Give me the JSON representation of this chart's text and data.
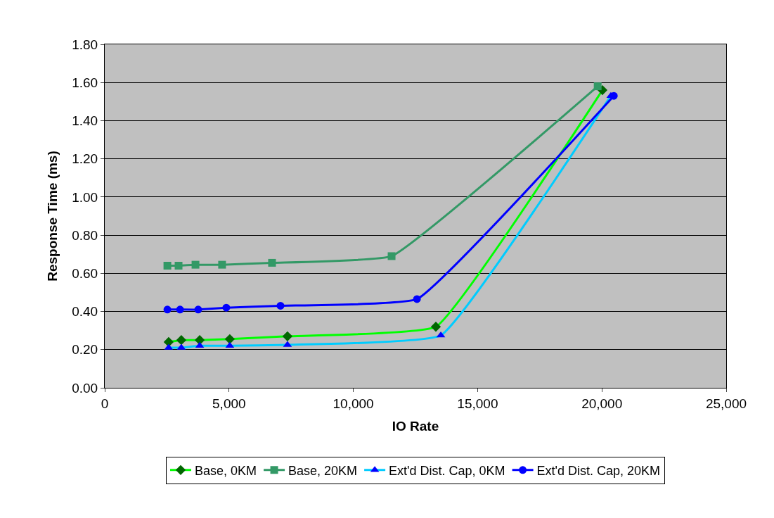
{
  "chart_data": {
    "type": "line",
    "xlabel": "IO Rate",
    "ylabel": "Response Time (ms)",
    "xlim": [
      0,
      25000
    ],
    "xticks": [
      {
        "value": 0,
        "label": "0"
      },
      {
        "value": 5000,
        "label": "5,000"
      },
      {
        "value": 10000,
        "label": "10,000"
      },
      {
        "value": 15000,
        "label": "15,000"
      },
      {
        "value": 20000,
        "label": "20,000"
      },
      {
        "value": 25000,
        "label": "25,000"
      }
    ],
    "ylim": [
      0,
      1.8
    ],
    "yticks": [
      {
        "value": 0,
        "label": "0.00"
      },
      {
        "value": 0.2,
        "label": "0.20"
      },
      {
        "value": 0.4,
        "label": "0.40"
      },
      {
        "value": 0.6,
        "label": "0.60"
      },
      {
        "value": 0.8,
        "label": "0.80"
      },
      {
        "value": 1.0,
        "label": "1.00"
      },
      {
        "value": 1.2,
        "label": "1.20"
      },
      {
        "value": 1.4,
        "label": "1.40"
      },
      {
        "value": 1.6,
        "label": "1.60"
      },
      {
        "value": 1.8,
        "label": "1.80"
      }
    ],
    "grid": "y",
    "legend": "bottom",
    "line_style": "solid",
    "series": [
      {
        "name": "Base, 0KM",
        "color": "#00ff00",
        "marker": "diamond",
        "x": [
          2570,
          3080,
          3820,
          5030,
          7350,
          13320,
          20020
        ],
        "values": [
          0.24,
          0.25,
          0.25,
          0.255,
          0.27,
          0.32,
          1.56
        ]
      },
      {
        "name": "Base, 20KM",
        "color": "#339966",
        "marker": "square",
        "x": [
          2520,
          2970,
          3650,
          4720,
          6730,
          11540,
          19830
        ],
        "values": [
          0.64,
          0.64,
          0.645,
          0.645,
          0.655,
          0.69,
          1.58
        ]
      },
      {
        "name": "Ext'd Dist. Cap, 0KM",
        "color": "#00ccff",
        "marker": "triangle",
        "x": [
          2570,
          3080,
          3820,
          5030,
          7350,
          13520,
          20360
        ],
        "values": [
          0.21,
          0.21,
          0.22,
          0.22,
          0.225,
          0.275,
          1.53
        ]
      },
      {
        "name": "Ext'd Dist. Cap, 20KM",
        "color": "#0000ff",
        "marker": "circle",
        "x": [
          2520,
          3030,
          3760,
          4890,
          7070,
          12560,
          20480
        ],
        "values": [
          0.41,
          0.41,
          0.41,
          0.42,
          0.43,
          0.465,
          1.53
        ]
      }
    ]
  }
}
